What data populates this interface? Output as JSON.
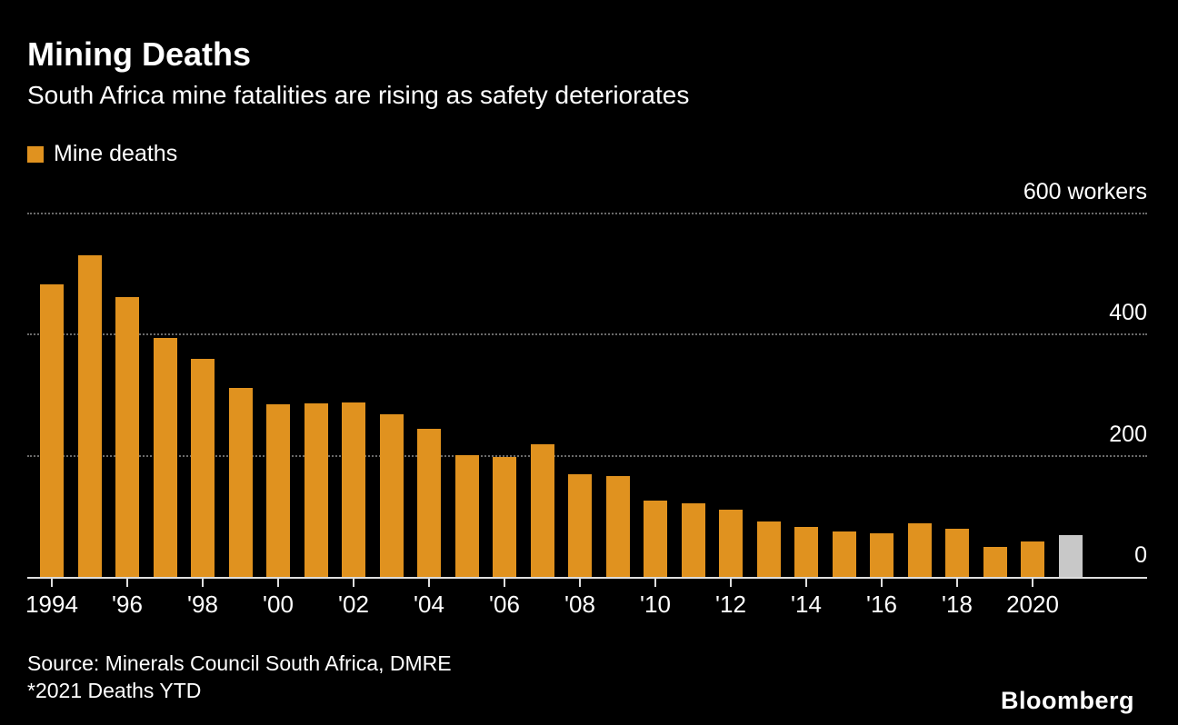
{
  "header": {
    "title": "Mining Deaths",
    "subtitle": "South Africa mine fatalities are rising as safety deteriorates"
  },
  "legend": {
    "label": "Mine deaths",
    "color": "#E0921F"
  },
  "chart_data": {
    "type": "bar",
    "x": [
      1994,
      1995,
      1996,
      1997,
      1998,
      1999,
      2000,
      2001,
      2002,
      2003,
      2004,
      2005,
      2006,
      2007,
      2008,
      2009,
      2010,
      2011,
      2012,
      2013,
      2014,
      2015,
      2016,
      2017,
      2018,
      2019,
      2020,
      2021
    ],
    "values": [
      484,
      533,
      463,
      396,
      361,
      313,
      287,
      288,
      290,
      270,
      246,
      202,
      200,
      221,
      171,
      168,
      127,
      123,
      112,
      93,
      84,
      77,
      73,
      90,
      81,
      51,
      60,
      70
    ],
    "series_name": "Mine deaths",
    "bar_color": "#E0921F",
    "highlight_last": true,
    "highlight_color": "#C8C8C8",
    "highlight_note": "2021 value is year-to-date, shown in gray",
    "ylim": [
      0,
      600
    ],
    "yticks": [
      0,
      200,
      400,
      600
    ],
    "ytick_labels": [
      "0",
      "200",
      "400",
      "600  workers"
    ],
    "tick_years": [
      1994,
      1996,
      1998,
      2000,
      2002,
      2004,
      2006,
      2008,
      2010,
      2012,
      2014,
      2016,
      2018,
      2020
    ],
    "xtick_labels": [
      "1994",
      "'96",
      "'98",
      "'00",
      "'02",
      "'04",
      "'06",
      "'08",
      "'10",
      "'12",
      "'14",
      "'16",
      "'18",
      "2020"
    ],
    "grid": "dotted horizontal, labels right-aligned above lines",
    "legend_position": "top-left",
    "title": "Mining Deaths",
    "xlabel": "",
    "ylabel": "workers"
  },
  "footer": {
    "source": "Source: Minerals Council South Africa, DMRE",
    "note": "*2021 Deaths YTD",
    "brand": "Bloomberg"
  }
}
